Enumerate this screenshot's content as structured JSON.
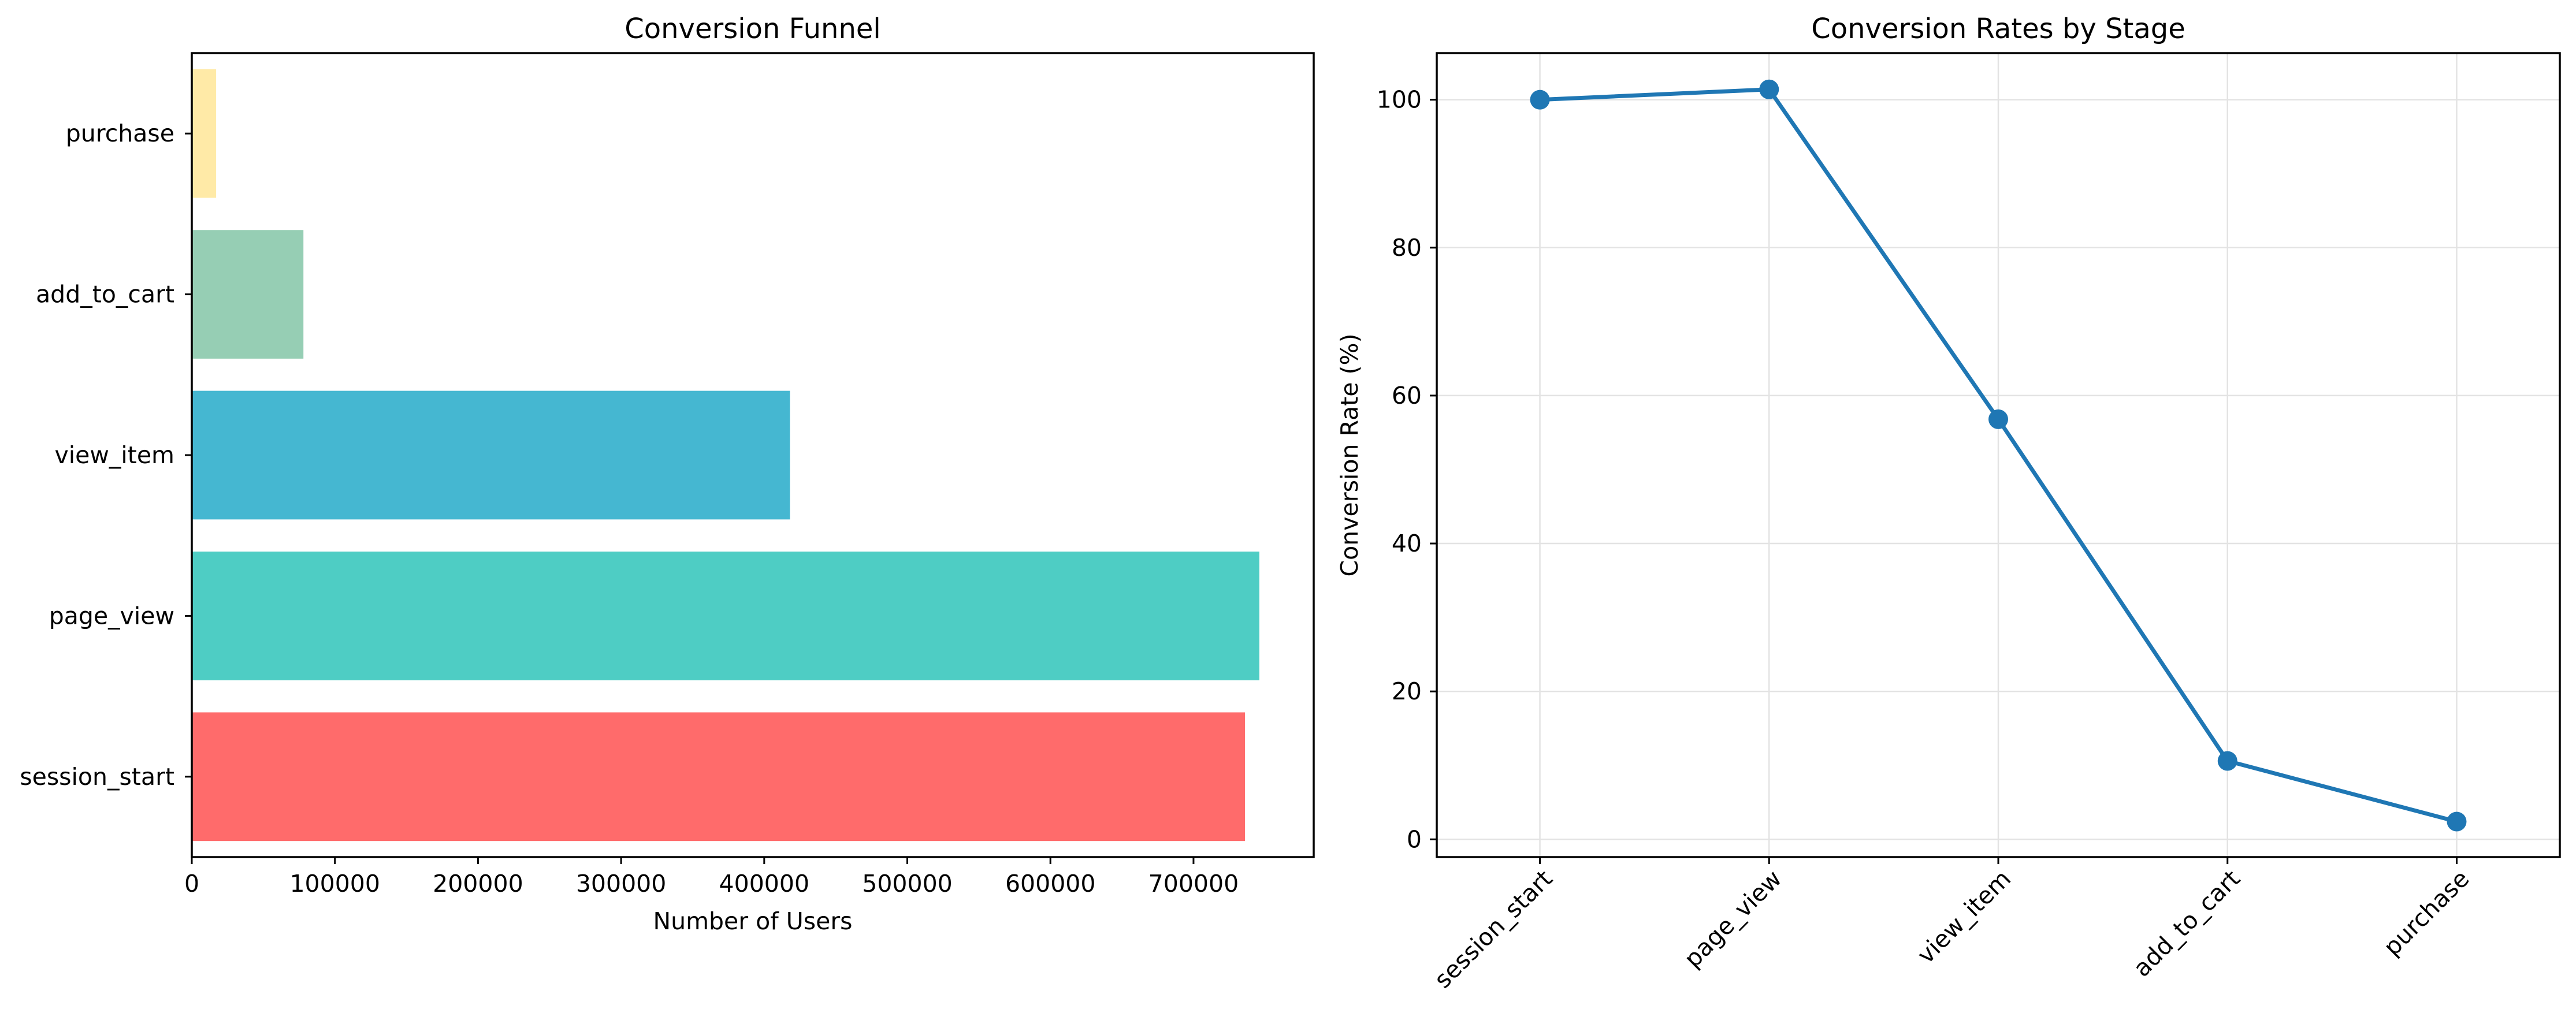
{
  "chart_data": [
    {
      "type": "bar",
      "orientation": "horizontal",
      "title": "Conversion Funnel",
      "xlabel": "Number of Users",
      "ylabel": "",
      "categories": [
        "session_start",
        "page_view",
        "view_item",
        "add_to_cart",
        "purchase"
      ],
      "values": [
        736000,
        746000,
        418000,
        78000,
        17000
      ],
      "colors": [
        "#FF6B6B",
        "#4ECDC4",
        "#45B7D1",
        "#96CEB4",
        "#FFEAA7"
      ],
      "xlim": [
        0,
        784000
      ],
      "xticks": [
        0,
        100000,
        200000,
        300000,
        400000,
        500000,
        600000,
        700000
      ],
      "xtick_labels": [
        "0",
        "100000",
        "200000",
        "300000",
        "400000",
        "500000",
        "600000",
        "700000"
      ],
      "grid": false
    },
    {
      "type": "line",
      "title": "Conversion Rates by Stage",
      "xlabel": "",
      "ylabel": "Conversion Rate (%)",
      "categories": [
        "session_start",
        "page_view",
        "view_item",
        "add_to_cart",
        "purchase"
      ],
      "values": [
        100.0,
        101.4,
        56.8,
        10.6,
        2.4
      ],
      "color": "#1f77b4",
      "marker": "circle",
      "ylim": [
        -2.4,
        106.3
      ],
      "yticks": [
        0,
        20,
        40,
        60,
        80,
        100
      ],
      "ytick_labels": [
        "0",
        "20",
        "40",
        "60",
        "80",
        "100"
      ],
      "xtick_rotation": 45,
      "grid": true
    }
  ]
}
